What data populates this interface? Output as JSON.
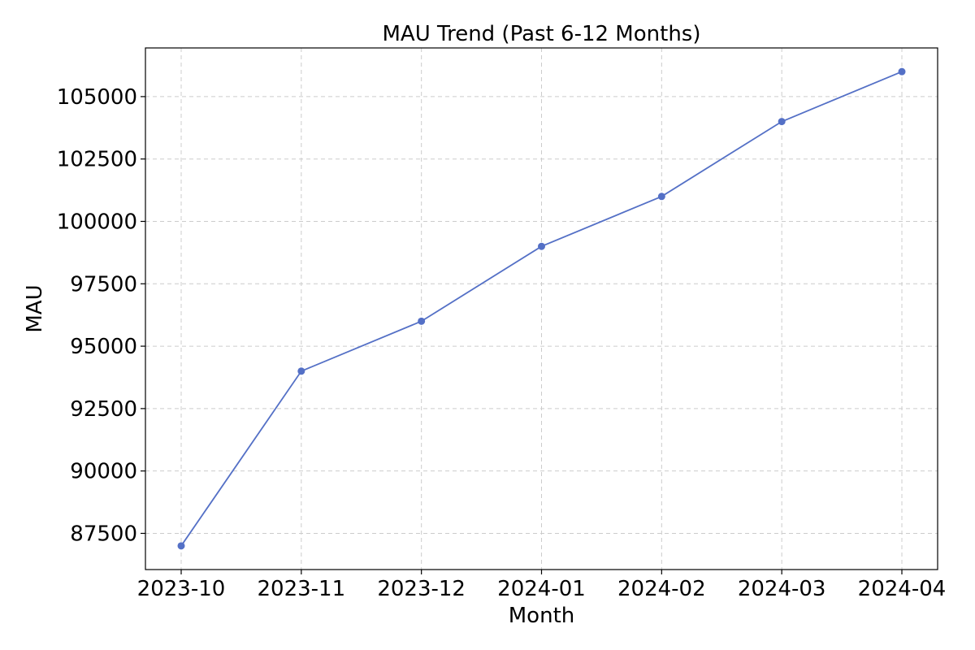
{
  "chart_data": {
    "type": "line",
    "title": "MAU Trend (Past 6-12 Months)",
    "xlabel": "Month",
    "ylabel": "MAU",
    "x": [
      "2023-10",
      "2023-11",
      "2023-12",
      "2024-01",
      "2024-02",
      "2024-03",
      "2024-04"
    ],
    "series": [
      {
        "values": [
          87000,
          94000,
          96000,
          99000,
          101000,
          104000,
          106000
        ],
        "color": "#5470c6",
        "marker": "circle"
      }
    ],
    "ylim": [
      86050,
      106950
    ],
    "yticks": [
      87500,
      90000,
      92500,
      95000,
      97500,
      100000,
      102500,
      105000
    ],
    "grid": true,
    "grid_style": "dashed",
    "legend": "none"
  }
}
